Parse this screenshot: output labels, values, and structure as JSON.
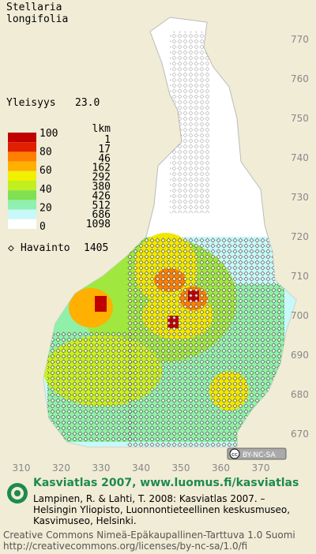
{
  "title": [
    "Stellaria",
    "longifolia"
  ],
  "prevalence": {
    "label": "Yleisyys",
    "value": "23.0"
  },
  "legend": {
    "percent_labels": [
      100,
      80,
      60,
      40,
      20,
      0
    ],
    "count_header": "lkm",
    "counts": [
      1,
      17,
      46,
      162,
      292,
      380,
      426,
      512,
      686,
      1098
    ]
  },
  "observations": {
    "label": "Havainto",
    "value": 1405
  },
  "axis": {
    "northing": [
      770,
      760,
      750,
      740,
      730,
      720,
      710,
      700,
      690,
      680,
      670
    ],
    "easting": [
      310,
      320,
      330,
      340,
      350,
      360,
      370
    ]
  },
  "license_badge": "BY-NC-SA",
  "footer": {
    "title": "Kasviatlas 2007, www.luomus.fi/kasviatlas",
    "citation": [
      "Lampinen, R. & Lahti, T. 2008: Kasviatlas 2007. –",
      "Helsingin Yliopisto, Luonnontieteellinen keskusmuseo,",
      "Kasvimuseo, Helsinki."
    ],
    "license": [
      "Creative Commons Nimeä-Epäkaupallinen-Tarttuva 1.0 Suomi",
      "http://creativecommons.org/licenses/by-nc-sa/1.0/fi"
    ]
  }
}
